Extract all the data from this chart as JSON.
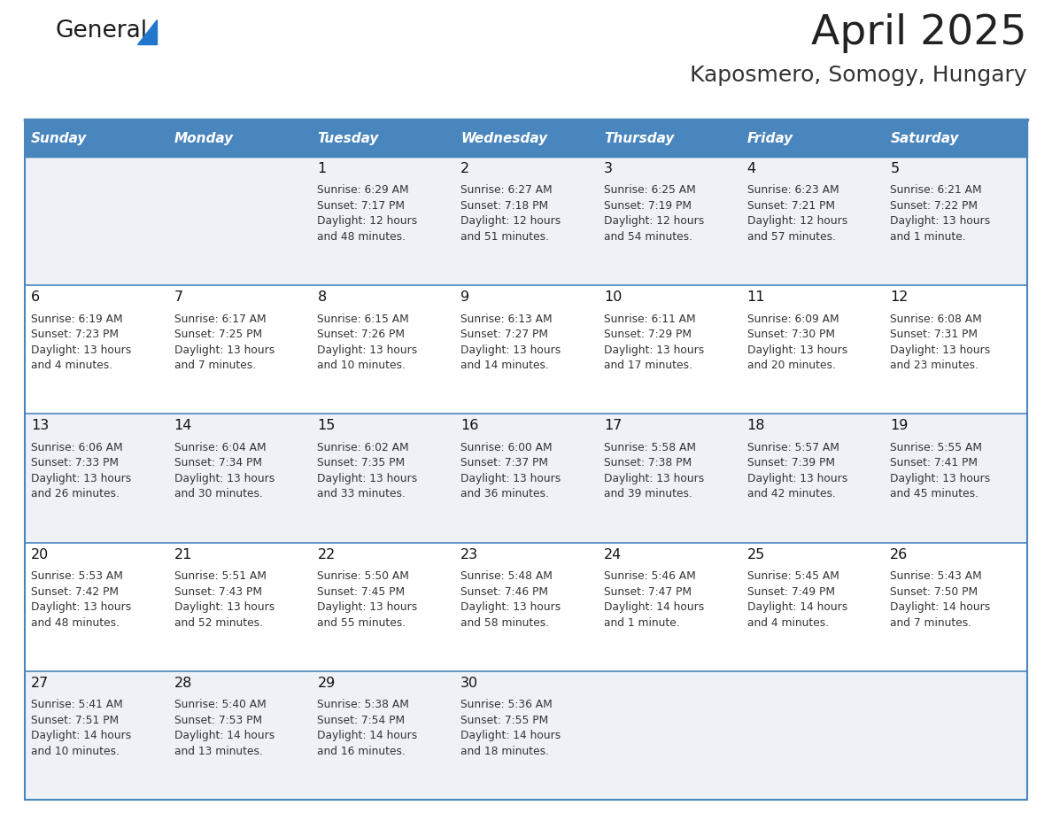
{
  "title": "April 2025",
  "subtitle": "Kaposmero, Somogy, Hungary",
  "days_of_week": [
    "Sunday",
    "Monday",
    "Tuesday",
    "Wednesday",
    "Thursday",
    "Friday",
    "Saturday"
  ],
  "header_bg": "#4a86be",
  "header_text": "#ffffff",
  "row_bg_odd": "#eef2f7",
  "row_bg_even": "#ffffff",
  "cell_text_color": "#333333",
  "day_num_color": "#111111",
  "divider_color": "#4a86be",
  "body_line_color": "#4a86be",
  "calendar_data": [
    [
      {
        "day": null,
        "info": null
      },
      {
        "day": null,
        "info": null
      },
      {
        "day": 1,
        "info": "Sunrise: 6:29 AM\nSunset: 7:17 PM\nDaylight: 12 hours\nand 48 minutes."
      },
      {
        "day": 2,
        "info": "Sunrise: 6:27 AM\nSunset: 7:18 PM\nDaylight: 12 hours\nand 51 minutes."
      },
      {
        "day": 3,
        "info": "Sunrise: 6:25 AM\nSunset: 7:19 PM\nDaylight: 12 hours\nand 54 minutes."
      },
      {
        "day": 4,
        "info": "Sunrise: 6:23 AM\nSunset: 7:21 PM\nDaylight: 12 hours\nand 57 minutes."
      },
      {
        "day": 5,
        "info": "Sunrise: 6:21 AM\nSunset: 7:22 PM\nDaylight: 13 hours\nand 1 minute."
      }
    ],
    [
      {
        "day": 6,
        "info": "Sunrise: 6:19 AM\nSunset: 7:23 PM\nDaylight: 13 hours\nand 4 minutes."
      },
      {
        "day": 7,
        "info": "Sunrise: 6:17 AM\nSunset: 7:25 PM\nDaylight: 13 hours\nand 7 minutes."
      },
      {
        "day": 8,
        "info": "Sunrise: 6:15 AM\nSunset: 7:26 PM\nDaylight: 13 hours\nand 10 minutes."
      },
      {
        "day": 9,
        "info": "Sunrise: 6:13 AM\nSunset: 7:27 PM\nDaylight: 13 hours\nand 14 minutes."
      },
      {
        "day": 10,
        "info": "Sunrise: 6:11 AM\nSunset: 7:29 PM\nDaylight: 13 hours\nand 17 minutes."
      },
      {
        "day": 11,
        "info": "Sunrise: 6:09 AM\nSunset: 7:30 PM\nDaylight: 13 hours\nand 20 minutes."
      },
      {
        "day": 12,
        "info": "Sunrise: 6:08 AM\nSunset: 7:31 PM\nDaylight: 13 hours\nand 23 minutes."
      }
    ],
    [
      {
        "day": 13,
        "info": "Sunrise: 6:06 AM\nSunset: 7:33 PM\nDaylight: 13 hours\nand 26 minutes."
      },
      {
        "day": 14,
        "info": "Sunrise: 6:04 AM\nSunset: 7:34 PM\nDaylight: 13 hours\nand 30 minutes."
      },
      {
        "day": 15,
        "info": "Sunrise: 6:02 AM\nSunset: 7:35 PM\nDaylight: 13 hours\nand 33 minutes."
      },
      {
        "day": 16,
        "info": "Sunrise: 6:00 AM\nSunset: 7:37 PM\nDaylight: 13 hours\nand 36 minutes."
      },
      {
        "day": 17,
        "info": "Sunrise: 5:58 AM\nSunset: 7:38 PM\nDaylight: 13 hours\nand 39 minutes."
      },
      {
        "day": 18,
        "info": "Sunrise: 5:57 AM\nSunset: 7:39 PM\nDaylight: 13 hours\nand 42 minutes."
      },
      {
        "day": 19,
        "info": "Sunrise: 5:55 AM\nSunset: 7:41 PM\nDaylight: 13 hours\nand 45 minutes."
      }
    ],
    [
      {
        "day": 20,
        "info": "Sunrise: 5:53 AM\nSunset: 7:42 PM\nDaylight: 13 hours\nand 48 minutes."
      },
      {
        "day": 21,
        "info": "Sunrise: 5:51 AM\nSunset: 7:43 PM\nDaylight: 13 hours\nand 52 minutes."
      },
      {
        "day": 22,
        "info": "Sunrise: 5:50 AM\nSunset: 7:45 PM\nDaylight: 13 hours\nand 55 minutes."
      },
      {
        "day": 23,
        "info": "Sunrise: 5:48 AM\nSunset: 7:46 PM\nDaylight: 13 hours\nand 58 minutes."
      },
      {
        "day": 24,
        "info": "Sunrise: 5:46 AM\nSunset: 7:47 PM\nDaylight: 14 hours\nand 1 minute."
      },
      {
        "day": 25,
        "info": "Sunrise: 5:45 AM\nSunset: 7:49 PM\nDaylight: 14 hours\nand 4 minutes."
      },
      {
        "day": 26,
        "info": "Sunrise: 5:43 AM\nSunset: 7:50 PM\nDaylight: 14 hours\nand 7 minutes."
      }
    ],
    [
      {
        "day": 27,
        "info": "Sunrise: 5:41 AM\nSunset: 7:51 PM\nDaylight: 14 hours\nand 10 minutes."
      },
      {
        "day": 28,
        "info": "Sunrise: 5:40 AM\nSunset: 7:53 PM\nDaylight: 14 hours\nand 13 minutes."
      },
      {
        "day": 29,
        "info": "Sunrise: 5:38 AM\nSunset: 7:54 PM\nDaylight: 14 hours\nand 16 minutes."
      },
      {
        "day": 30,
        "info": "Sunrise: 5:36 AM\nSunset: 7:55 PM\nDaylight: 14 hours\nand 18 minutes."
      },
      {
        "day": null,
        "info": null
      },
      {
        "day": null,
        "info": null
      },
      {
        "day": null,
        "info": null
      }
    ]
  ],
  "logo_color_general": "#1a1a1a",
  "logo_color_blue": "#2277cc",
  "logo_triangle_color": "#2277cc",
  "fig_width": 11.88,
  "fig_height": 9.18,
  "dpi": 100
}
